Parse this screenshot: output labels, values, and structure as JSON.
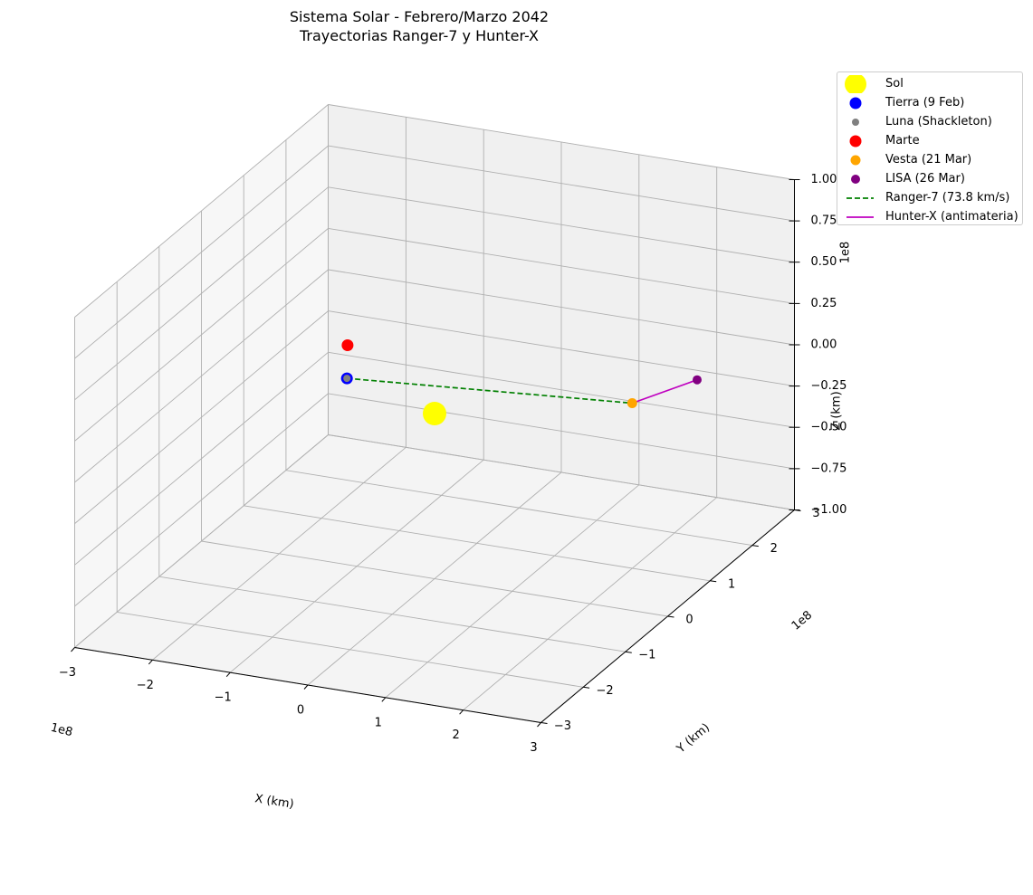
{
  "chart_data": {
    "type": "scatter",
    "title": "Sistema Solar - Febrero/Marzo 2042",
    "subtitle": "Trayectorias Ranger-7 y Hunter-X",
    "xlabel": "X (km)",
    "ylabel": "Y (km)",
    "zlabel": "Z (km)",
    "xlim": [
      -3,
      3
    ],
    "ylim": [
      -3,
      3
    ],
    "zlim": [
      -1,
      1
    ],
    "x_offset_text": "1e8",
    "y_offset_text": "1e8",
    "z_offset_text": "1e8",
    "x_ticks": [
      "−3",
      "−2",
      "−1",
      "0",
      "1",
      "2",
      "3"
    ],
    "y_ticks": [
      "−3",
      "−2",
      "−1",
      "0",
      "1",
      "2",
      "3"
    ],
    "z_ticks": [
      "−1.00",
      "−0.75",
      "−0.50",
      "−0.25",
      "0.00",
      "0.25",
      "0.50",
      "0.75",
      "1.00"
    ],
    "grid": true,
    "legend_position": "outside top-right",
    "series": [
      {
        "name": "Sol",
        "kind": "marker",
        "color": "#ffff00",
        "x": 0,
        "y": 0,
        "z": 0
      },
      {
        "name": "Tierra (9 Feb)",
        "kind": "marker",
        "color": "#0000ff",
        "x": -1.4,
        "y": 0.5,
        "z": 0
      },
      {
        "name": "Luna (Shackleton)",
        "kind": "marker",
        "color": "#808080",
        "x": -1.4,
        "y": 0.5,
        "z": 0
      },
      {
        "name": "Marte",
        "kind": "marker",
        "color": "#ff0000",
        "x": -1.5,
        "y": 0.7,
        "z": 0.15
      },
      {
        "name": "Vesta (21 Mar)",
        "kind": "marker",
        "color": "#ffa500",
        "x": 2.0,
        "y": 1.0,
        "z": 0
      },
      {
        "name": "LISA (26 Mar)",
        "kind": "marker",
        "color": "#800080",
        "x": 2.4,
        "y": 1.8,
        "z": 0
      },
      {
        "name": "Ranger-7 (73.8 km/s)",
        "kind": "line",
        "style": "dashed",
        "color": "#008000",
        "x": [
          -1.4,
          2.0
        ],
        "y": [
          0.5,
          1.0
        ],
        "z": [
          0,
          0
        ]
      },
      {
        "name": "Hunter-X (antimateria)",
        "kind": "line",
        "style": "solid",
        "color": "#bf00bf",
        "x": [
          2.0,
          2.4
        ],
        "y": [
          1.0,
          1.8
        ],
        "z": [
          0,
          0
        ]
      }
    ]
  }
}
